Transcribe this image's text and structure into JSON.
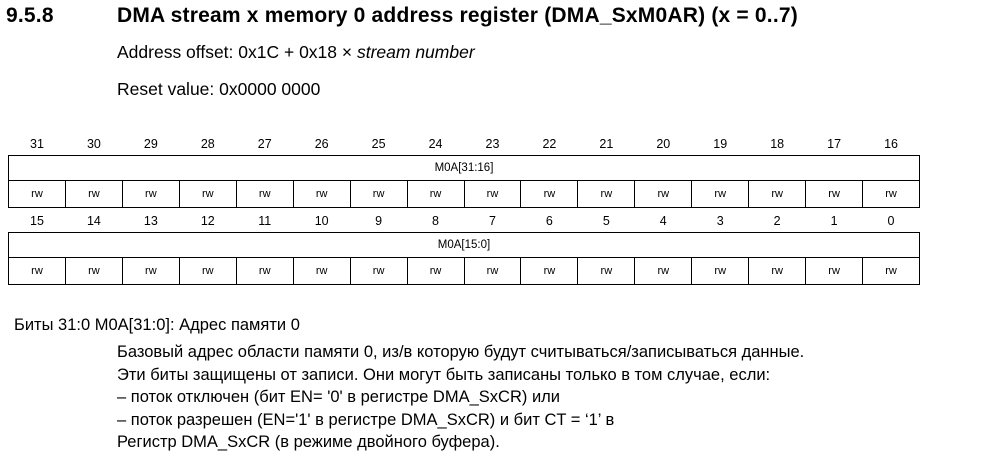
{
  "section": {
    "number": "9.5.8",
    "title": "DMA stream x memory 0 address register (DMA_SxM0AR) (x = 0..7)"
  },
  "offset": {
    "prefix": "Address offset: 0x1C + 0x18 × ",
    "italic": "stream number"
  },
  "reset": "Reset value: 0x0000 0000",
  "register_high": {
    "bits": [
      "31",
      "30",
      "29",
      "28",
      "27",
      "26",
      "25",
      "24",
      "23",
      "22",
      "21",
      "20",
      "19",
      "18",
      "17",
      "16"
    ],
    "field": "M0A[31:16]",
    "access": [
      "rw",
      "rw",
      "rw",
      "rw",
      "rw",
      "rw",
      "rw",
      "rw",
      "rw",
      "rw",
      "rw",
      "rw",
      "rw",
      "rw",
      "rw",
      "rw"
    ]
  },
  "register_low": {
    "bits": [
      "15",
      "14",
      "13",
      "12",
      "11",
      "10",
      "9",
      "8",
      "7",
      "6",
      "5",
      "4",
      "3",
      "2",
      "1",
      "0"
    ],
    "field": "M0A[15:0]",
    "access": [
      "rw",
      "rw",
      "rw",
      "rw",
      "rw",
      "rw",
      "rw",
      "rw",
      "rw",
      "rw",
      "rw",
      "rw",
      "rw",
      "rw",
      "rw",
      "rw"
    ]
  },
  "description": {
    "heading": "Биты 31:0 M0A[31:0]: Адрес памяти 0",
    "lines": [
      "Базовый адрес области памяти 0, из/в которую будут считываться/записываться данные.",
      "Эти биты защищены от записи. Они могут быть записаны только в том случае, если:",
      "– поток отключен (бит EN= '0' в регистре DMA_SxCR) или",
      "– поток разрешен (EN='1' в регистре DMA_SxCR) и бит CT = ‘1’ в",
      "Регистр DMA_SxCR (в режиме двойного буфера)."
    ]
  }
}
